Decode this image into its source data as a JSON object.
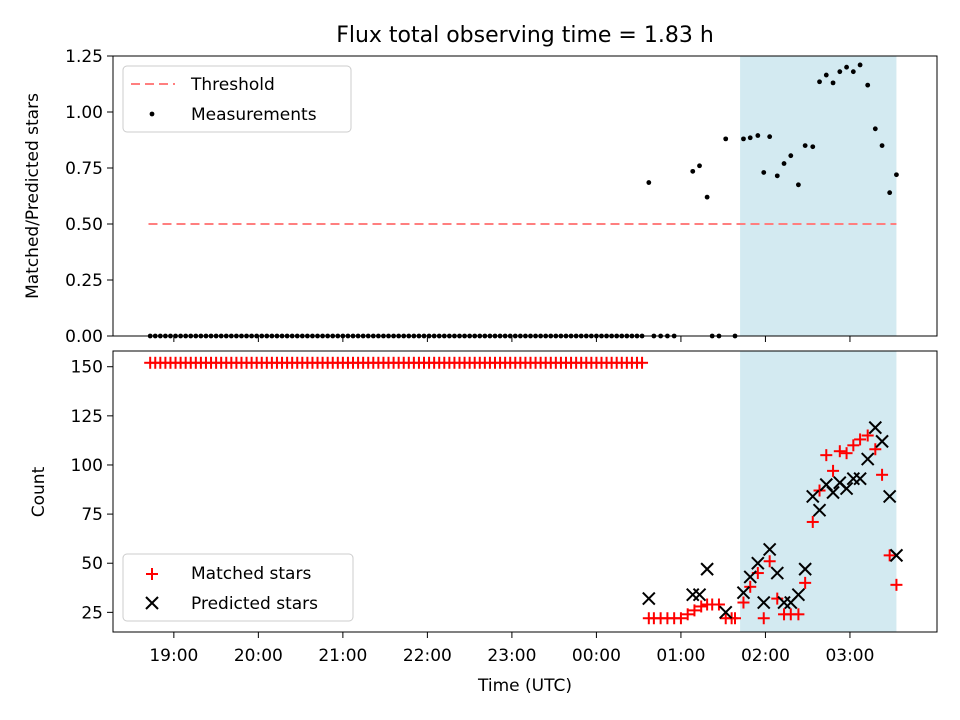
{
  "chart_data": {
    "title": "Flux total observing time = 1.83 h",
    "xlabel": "Time (UTC)",
    "x_ticks": [
      "19:00",
      "20:00",
      "21:00",
      "22:00",
      "23:00",
      "00:00",
      "01:00",
      "02:00",
      "03:00"
    ],
    "x_tick_hours": [
      19,
      20,
      21,
      22,
      23,
      24,
      25,
      26,
      27
    ],
    "xlim_hours": [
      18.28,
      28.03
    ],
    "shaded_interval_hours": [
      25.7,
      27.55
    ],
    "shade_color": "#d3eaf1",
    "top": {
      "type": "scatter",
      "ylabel": "Matched/Predicted stars",
      "ylim": [
        0,
        1.25
      ],
      "y_ticks": [
        "0.00",
        "0.25",
        "0.50",
        "0.75",
        "1.00",
        "1.25"
      ],
      "y_tick_values": [
        0,
        0.25,
        0.5,
        0.75,
        1.0,
        1.25
      ],
      "legend": [
        "Threshold",
        "Measurements"
      ],
      "threshold": {
        "name": "Threshold",
        "value": 0.5,
        "x_range_hours": [
          18.7,
          27.55
        ],
        "color": "#ff7f7f"
      },
      "measurements": {
        "name": "Measurements",
        "color": "#000000",
        "points": [
          [
            18.72,
            0
          ],
          [
            18.78,
            0
          ],
          [
            18.84,
            0
          ],
          [
            18.9,
            0
          ],
          [
            18.96,
            0
          ],
          [
            19.02,
            0
          ],
          [
            19.08,
            0
          ],
          [
            19.14,
            0
          ],
          [
            19.2,
            0
          ],
          [
            19.26,
            0
          ],
          [
            19.32,
            0
          ],
          [
            19.38,
            0
          ],
          [
            19.44,
            0
          ],
          [
            19.5,
            0
          ],
          [
            19.56,
            0
          ],
          [
            19.62,
            0
          ],
          [
            19.68,
            0
          ],
          [
            19.74,
            0
          ],
          [
            19.8,
            0
          ],
          [
            19.86,
            0
          ],
          [
            19.92,
            0
          ],
          [
            19.98,
            0
          ],
          [
            20.04,
            0
          ],
          [
            20.1,
            0
          ],
          [
            20.16,
            0
          ],
          [
            20.22,
            0
          ],
          [
            20.28,
            0
          ],
          [
            20.34,
            0
          ],
          [
            20.4,
            0
          ],
          [
            20.46,
            0
          ],
          [
            20.52,
            0
          ],
          [
            20.58,
            0
          ],
          [
            20.64,
            0
          ],
          [
            20.7,
            0
          ],
          [
            20.76,
            0
          ],
          [
            20.82,
            0
          ],
          [
            20.88,
            0
          ],
          [
            20.94,
            0
          ],
          [
            21.0,
            0
          ],
          [
            21.06,
            0
          ],
          [
            21.12,
            0
          ],
          [
            21.18,
            0
          ],
          [
            21.24,
            0
          ],
          [
            21.3,
            0
          ],
          [
            21.36,
            0
          ],
          [
            21.42,
            0
          ],
          [
            21.48,
            0
          ],
          [
            21.54,
            0
          ],
          [
            21.6,
            0
          ],
          [
            21.66,
            0
          ],
          [
            21.72,
            0
          ],
          [
            21.78,
            0
          ],
          [
            21.84,
            0
          ],
          [
            21.9,
            0
          ],
          [
            21.96,
            0
          ],
          [
            22.02,
            0
          ],
          [
            22.08,
            0
          ],
          [
            22.14,
            0
          ],
          [
            22.2,
            0
          ],
          [
            22.26,
            0
          ],
          [
            22.32,
            0
          ],
          [
            22.38,
            0
          ],
          [
            22.44,
            0
          ],
          [
            22.5,
            0
          ],
          [
            22.56,
            0
          ],
          [
            22.62,
            0
          ],
          [
            22.68,
            0
          ],
          [
            22.74,
            0
          ],
          [
            22.8,
            0
          ],
          [
            22.86,
            0
          ],
          [
            22.92,
            0
          ],
          [
            22.98,
            0
          ],
          [
            23.04,
            0
          ],
          [
            23.1,
            0
          ],
          [
            23.16,
            0
          ],
          [
            23.22,
            0
          ],
          [
            23.28,
            0
          ],
          [
            23.34,
            0
          ],
          [
            23.4,
            0
          ],
          [
            23.46,
            0
          ],
          [
            23.52,
            0
          ],
          [
            23.58,
            0
          ],
          [
            23.64,
            0
          ],
          [
            23.7,
            0
          ],
          [
            23.76,
            0
          ],
          [
            23.82,
            0
          ],
          [
            23.88,
            0
          ],
          [
            23.94,
            0
          ],
          [
            24.0,
            0
          ],
          [
            24.06,
            0
          ],
          [
            24.12,
            0
          ],
          [
            24.18,
            0
          ],
          [
            24.24,
            0
          ],
          [
            24.3,
            0
          ],
          [
            24.36,
            0
          ],
          [
            24.42,
            0
          ],
          [
            24.48,
            0
          ],
          [
            24.54,
            0
          ],
          [
            24.68,
            0
          ],
          [
            24.76,
            0
          ],
          [
            24.84,
            0
          ],
          [
            24.92,
            0
          ],
          [
            25.37,
            0
          ],
          [
            25.45,
            0
          ],
          [
            25.64,
            0
          ],
          [
            24.62,
            0.685
          ],
          [
            25.14,
            0.735
          ],
          [
            25.22,
            0.76
          ],
          [
            25.31,
            0.62
          ],
          [
            25.53,
            0.88
          ],
          [
            25.74,
            0.88
          ],
          [
            25.82,
            0.885
          ],
          [
            25.91,
            0.895
          ],
          [
            25.98,
            0.73
          ],
          [
            26.05,
            0.89
          ],
          [
            26.14,
            0.715
          ],
          [
            26.22,
            0.77
          ],
          [
            26.3,
            0.805
          ],
          [
            26.39,
            0.675
          ],
          [
            26.47,
            0.85
          ],
          [
            26.56,
            0.845
          ],
          [
            26.64,
            1.135
          ],
          [
            26.72,
            1.165
          ],
          [
            26.8,
            1.13
          ],
          [
            26.88,
            1.18
          ],
          [
            26.96,
            1.2
          ],
          [
            27.04,
            1.18
          ],
          [
            27.12,
            1.21
          ],
          [
            27.21,
            1.12
          ],
          [
            27.3,
            0.925
          ],
          [
            27.38,
            0.85
          ],
          [
            27.47,
            0.64
          ],
          [
            27.55,
            0.72
          ]
        ]
      }
    },
    "bottom": {
      "type": "scatter",
      "ylabel": "Count",
      "ylim": [
        15,
        158
      ],
      "y_ticks": [
        "25",
        "50",
        "75",
        "100",
        "125",
        "150"
      ],
      "y_tick_values": [
        25,
        50,
        75,
        100,
        125,
        150
      ],
      "legend": [
        "Matched stars",
        "Predicted stars"
      ],
      "series": [
        {
          "name": "Matched stars",
          "marker": "+",
          "color": "#ff0000",
          "x_hours": [
            18.72,
            18.78,
            18.84,
            18.9,
            18.96,
            19.02,
            19.08,
            19.14,
            19.2,
            19.26,
            19.32,
            19.38,
            19.44,
            19.5,
            19.56,
            19.62,
            19.68,
            19.74,
            19.8,
            19.86,
            19.92,
            19.98,
            20.04,
            20.1,
            20.16,
            20.22,
            20.28,
            20.34,
            20.4,
            20.46,
            20.52,
            20.58,
            20.64,
            20.7,
            20.76,
            20.82,
            20.88,
            20.94,
            21.0,
            21.06,
            21.12,
            21.18,
            21.24,
            21.3,
            21.36,
            21.42,
            21.48,
            21.54,
            21.6,
            21.66,
            21.72,
            21.78,
            21.84,
            21.9,
            21.96,
            22.02,
            22.08,
            22.14,
            22.2,
            22.26,
            22.32,
            22.38,
            22.44,
            22.5,
            22.56,
            22.62,
            22.68,
            22.74,
            22.8,
            22.86,
            22.92,
            22.98,
            23.04,
            23.1,
            23.16,
            23.22,
            23.28,
            23.34,
            23.4,
            23.46,
            23.52,
            23.58,
            23.64,
            23.7,
            23.76,
            23.82,
            23.88,
            23.94,
            24.0,
            24.06,
            24.12,
            24.18,
            24.24,
            24.3,
            24.36,
            24.42,
            24.48,
            24.54,
            24.62,
            24.68,
            24.76,
            24.84,
            24.92,
            25.0,
            25.08,
            25.16,
            25.24,
            25.31,
            25.37,
            25.45,
            25.53,
            25.6,
            25.64,
            25.74,
            25.82,
            25.91,
            25.98,
            26.05,
            26.14,
            26.22,
            26.3,
            26.39,
            26.47,
            26.56,
            26.64,
            26.72,
            26.8,
            26.88,
            26.96,
            27.04,
            27.12,
            27.21,
            27.3,
            27.38,
            27.47,
            27.55
          ],
          "values": [
            152,
            152,
            152,
            152,
            152,
            152,
            152,
            152,
            152,
            152,
            152,
            152,
            152,
            152,
            152,
            152,
            152,
            152,
            152,
            152,
            152,
            152,
            152,
            152,
            152,
            152,
            152,
            152,
            152,
            152,
            152,
            152,
            152,
            152,
            152,
            152,
            152,
            152,
            152,
            152,
            152,
            152,
            152,
            152,
            152,
            152,
            152,
            152,
            152,
            152,
            152,
            152,
            152,
            152,
            152,
            152,
            152,
            152,
            152,
            152,
            152,
            152,
            152,
            152,
            152,
            152,
            152,
            152,
            152,
            152,
            152,
            152,
            152,
            152,
            152,
            152,
            152,
            152,
            152,
            152,
            152,
            152,
            152,
            152,
            152,
            152,
            152,
            152,
            152,
            152,
            152,
            152,
            152,
            152,
            152,
            152,
            152,
            152,
            22,
            22,
            22,
            22,
            22,
            22,
            24,
            26,
            28,
            29,
            29,
            29,
            22,
            22,
            22,
            30,
            38,
            45,
            22,
            51,
            32,
            24,
            24,
            24,
            40,
            71,
            87,
            105,
            97,
            107,
            106,
            110,
            113,
            115,
            108,
            95,
            54,
            39
          ]
        },
        {
          "name": "Predicted stars",
          "marker": "x",
          "color": "#000000",
          "x_hours": [
            24.62,
            25.14,
            25.22,
            25.31,
            25.53,
            25.74,
            25.82,
            25.91,
            25.98,
            26.05,
            26.14,
            26.22,
            26.3,
            26.39,
            26.47,
            26.56,
            26.64,
            26.72,
            26.8,
            26.88,
            26.96,
            27.04,
            27.12,
            27.21,
            27.3,
            27.38,
            27.47,
            27.55
          ],
          "values": [
            32,
            34,
            34,
            47,
            25,
            35,
            43,
            50,
            30,
            57,
            45,
            30,
            30,
            34,
            47,
            84,
            77,
            90,
            86,
            91,
            88,
            93,
            93,
            103,
            119,
            112,
            84,
            54
          ]
        }
      ]
    }
  }
}
